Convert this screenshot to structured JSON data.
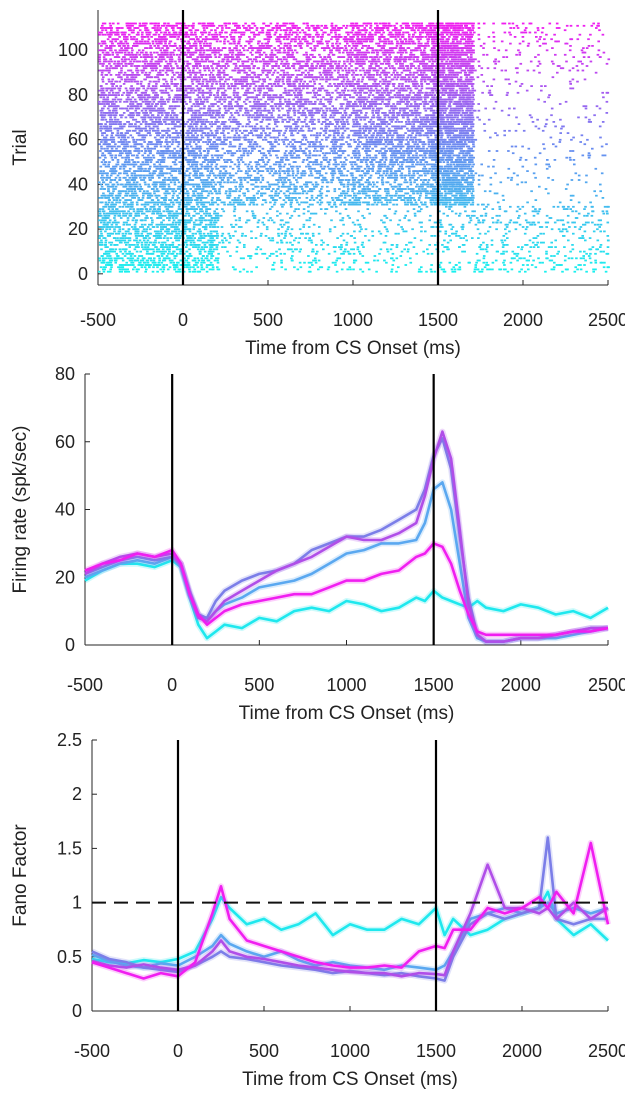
{
  "chart_data": [
    {
      "type": "scatter",
      "subtype": "raster",
      "xlabel": "Time from CS Onset (ms)",
      "ylabel": "Trial",
      "xlim": [
        -500,
        2500
      ],
      "ylim": [
        -5,
        118
      ],
      "xticks": [
        -500,
        0,
        500,
        1000,
        1500,
        2000,
        2500
      ],
      "yticks": [
        0,
        20,
        40,
        60,
        80,
        100
      ],
      "vlines": [
        0,
        1500
      ],
      "trials": 112,
      "color_range": [
        "#19f0ee",
        "#6a8cf0",
        "#f01ef0"
      ],
      "spike_density": [
        {
          "trials": "1-30",
          "window_ms": [
            -500,
            200
          ],
          "level": "high"
        },
        {
          "trials": "1-30",
          "window_ms": [
            200,
            2500
          ],
          "level": "sparse"
        },
        {
          "trials": "31-112",
          "window_ms": [
            -500,
            1700
          ],
          "level": "dense"
        },
        {
          "trials": "31-112",
          "window_ms": [
            1700,
            2500
          ],
          "level": "sparse"
        }
      ]
    },
    {
      "type": "line",
      "xlabel": "Time from CS Onset (ms)",
      "ylabel": "Firing rate (spk/sec)",
      "xlim": [
        -500,
        2500
      ],
      "ylim": [
        0,
        80
      ],
      "xticks": [
        -500,
        0,
        500,
        1000,
        1500,
        2000,
        2500
      ],
      "yticks": [
        0,
        20,
        40,
        60,
        80
      ],
      "vlines": [
        0,
        1500
      ],
      "x": [
        -500,
        -400,
        -300,
        -200,
        -100,
        0,
        50,
        100,
        150,
        200,
        250,
        300,
        400,
        500,
        600,
        700,
        800,
        900,
        1000,
        1100,
        1200,
        1300,
        1400,
        1450,
        1500,
        1550,
        1600,
        1650,
        1700,
        1750,
        1800,
        1900,
        2000,
        2100,
        2200,
        2300,
        2400,
        2500
      ],
      "series": [
        {
          "color": "#1ee8ee",
          "values": [
            19,
            22,
            24,
            24,
            23,
            25,
            23,
            14,
            6,
            2,
            4,
            6,
            5,
            8,
            7,
            10,
            11,
            10,
            13,
            12,
            10,
            11,
            14,
            13,
            16,
            14,
            13,
            12,
            11,
            13,
            11,
            10,
            12,
            11,
            9,
            10,
            8,
            11
          ]
        },
        {
          "color": "#5aa8f0",
          "values": [
            20,
            22,
            24,
            25,
            24,
            26,
            23,
            15,
            9,
            7,
            10,
            12,
            14,
            17,
            18,
            19,
            21,
            24,
            27,
            28,
            30,
            30,
            31,
            36,
            46,
            48,
            40,
            24,
            8,
            2,
            1,
            1,
            2,
            2,
            2,
            3,
            4,
            5
          ]
        },
        {
          "color": "#7b7ee8",
          "values": [
            21,
            23,
            25,
            26,
            25,
            26,
            24,
            16,
            9,
            8,
            13,
            16,
            19,
            21,
            22,
            24,
            28,
            30,
            32,
            32,
            34,
            37,
            40,
            46,
            56,
            61,
            52,
            32,
            14,
            3,
            1,
            1,
            2,
            2,
            3,
            4,
            5,
            5
          ]
        },
        {
          "color": "#b04ee8",
          "values": [
            21,
            24,
            26,
            27,
            26,
            27,
            24,
            15,
            8,
            7,
            10,
            13,
            16,
            19,
            22,
            24,
            26,
            29,
            32,
            31,
            31,
            33,
            36,
            44,
            55,
            63,
            55,
            34,
            12,
            3,
            1,
            1,
            2,
            2,
            3,
            4,
            5,
            5
          ]
        },
        {
          "color": "#f01ef0",
          "values": [
            22,
            24,
            25,
            27,
            26,
            28,
            24,
            15,
            9,
            6,
            8,
            10,
            12,
            13,
            14,
            15,
            15,
            17,
            19,
            19,
            21,
            22,
            26,
            27,
            30,
            29,
            24,
            16,
            9,
            4,
            3,
            3,
            3,
            3,
            3,
            4,
            4,
            5
          ]
        }
      ]
    },
    {
      "type": "line",
      "xlabel": "Time from CS Onset (ms)",
      "ylabel": "Fano Factor",
      "xlim": [
        -500,
        2500
      ],
      "ylim": [
        0,
        2.5
      ],
      "xticks": [
        -500,
        0,
        500,
        1000,
        1500,
        2000,
        2500
      ],
      "yticks": [
        0,
        0.5,
        1,
        1.5,
        2,
        2.5
      ],
      "ytick_labels": [
        "0",
        "0.5",
        "1",
        "1.5",
        "2",
        "2.5"
      ],
      "vlines": [
        0,
        1500
      ],
      "hline": 1,
      "x": [
        -500,
        -400,
        -300,
        -200,
        -100,
        0,
        100,
        200,
        250,
        300,
        400,
        500,
        600,
        700,
        800,
        900,
        1000,
        1100,
        1200,
        1300,
        1400,
        1500,
        1550,
        1600,
        1700,
        1800,
        1900,
        2000,
        2100,
        2150,
        2200,
        2300,
        2400,
        2500
      ],
      "series": [
        {
          "color": "#1ee8ee",
          "values": [
            0.48,
            0.45,
            0.44,
            0.47,
            0.45,
            0.48,
            0.55,
            0.85,
            1.05,
            0.95,
            0.8,
            0.85,
            0.75,
            0.8,
            0.9,
            0.7,
            0.8,
            0.75,
            0.75,
            0.85,
            0.8,
            0.95,
            0.7,
            0.85,
            0.7,
            0.75,
            0.85,
            0.9,
            0.95,
            1.1,
            0.85,
            0.7,
            0.8,
            0.65
          ]
        },
        {
          "color": "#5aa8f0",
          "values": [
            0.52,
            0.46,
            0.42,
            0.4,
            0.44,
            0.42,
            0.5,
            0.6,
            0.7,
            0.62,
            0.55,
            0.5,
            0.55,
            0.47,
            0.42,
            0.45,
            0.42,
            0.4,
            0.38,
            0.42,
            0.4,
            0.38,
            0.42,
            0.55,
            0.85,
            0.9,
            0.95,
            0.9,
            0.95,
            1.0,
            0.9,
            0.95,
            0.9,
            0.95
          ]
        },
        {
          "color": "#7b7ee8",
          "values": [
            0.55,
            0.48,
            0.45,
            0.4,
            0.38,
            0.36,
            0.42,
            0.5,
            0.55,
            0.5,
            0.48,
            0.45,
            0.42,
            0.4,
            0.38,
            0.35,
            0.37,
            0.35,
            0.33,
            0.35,
            0.32,
            0.3,
            0.28,
            0.5,
            0.8,
            0.9,
            0.85,
            0.9,
            0.95,
            1.6,
            0.85,
            0.8,
            0.85,
            0.85
          ]
        },
        {
          "color": "#b04ee8",
          "values": [
            0.46,
            0.42,
            0.4,
            0.43,
            0.4,
            0.38,
            0.42,
            0.55,
            0.65,
            0.55,
            0.5,
            0.48,
            0.45,
            0.42,
            0.4,
            0.38,
            0.36,
            0.35,
            0.35,
            0.32,
            0.35,
            0.34,
            0.33,
            0.55,
            0.9,
            1.35,
            0.95,
            0.95,
            0.9,
            0.95,
            0.85,
            1.0,
            0.85,
            0.95
          ]
        },
        {
          "color": "#f01ef0",
          "values": [
            0.45,
            0.4,
            0.35,
            0.3,
            0.35,
            0.32,
            0.45,
            0.9,
            1.15,
            0.85,
            0.65,
            0.6,
            0.55,
            0.5,
            0.45,
            0.42,
            0.4,
            0.4,
            0.42,
            0.4,
            0.55,
            0.6,
            0.58,
            0.75,
            0.75,
            0.95,
            0.9,
            0.95,
            1.05,
            0.95,
            1.1,
            0.9,
            1.55,
            0.8
          ]
        }
      ]
    }
  ]
}
